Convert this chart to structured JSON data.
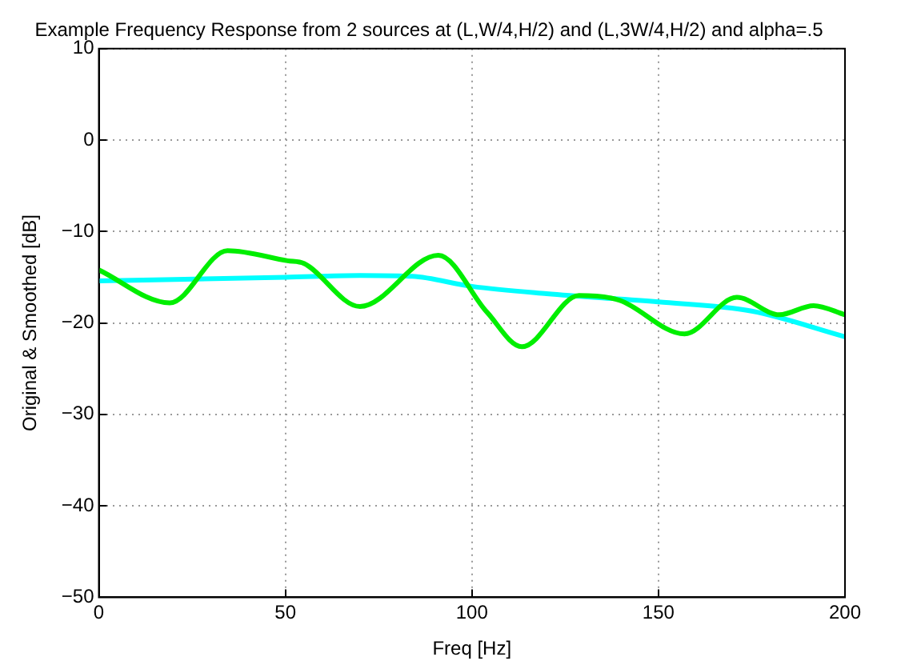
{
  "chart_data": {
    "type": "line",
    "title": "Example Frequency Response from 2 sources at (L,W/4,H/2) and (L,3W/4,H/2) and alpha=.5",
    "xlabel": "Freq [Hz]",
    "ylabel": "Original & Smoothed [dB]",
    "xlim": [
      0,
      200
    ],
    "ylim": [
      -50,
      10
    ],
    "xticks": [
      0,
      50,
      100,
      150,
      200
    ],
    "yticks": [
      -50,
      -40,
      -30,
      -20,
      -10,
      0,
      10
    ],
    "grid": true,
    "line_style": "solid",
    "marker": "none",
    "series": [
      {
        "color": "#00ee00",
        "x": [
          0,
          19,
          34.5,
          50.6,
          55,
          70,
          91,
          104,
          113.4,
          128.7,
          139.5,
          157,
          171,
          182.4,
          191.6,
          200
        ],
        "values": [
          -14.2,
          -17.8,
          -12.1,
          -13.2,
          -13.5,
          -18.2,
          -12.6,
          -18.8,
          -22.6,
          -17,
          -17.5,
          -21.2,
          -17.2,
          -19.1,
          -18.1,
          -19.1
        ]
      },
      {
        "color": "#00ffff",
        "x": [
          0,
          50,
          70,
          84,
          100,
          120,
          150,
          175,
          200
        ],
        "values": [
          -15.4,
          -15,
          -14.8,
          -14.9,
          -16,
          -16.8,
          -17.7,
          -18.7,
          -21.5
        ]
      }
    ]
  }
}
